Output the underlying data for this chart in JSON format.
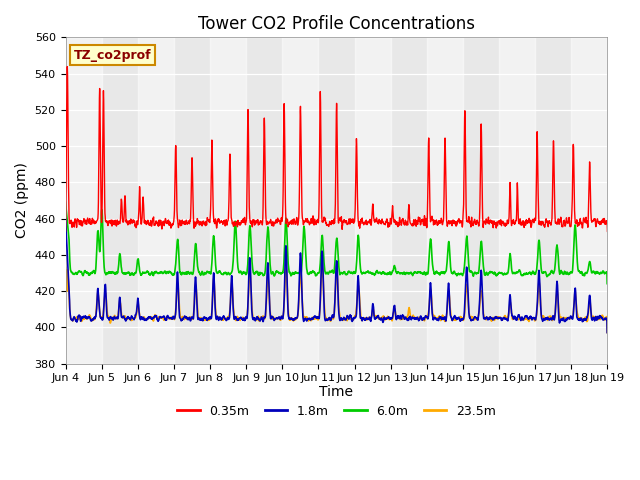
{
  "title": "Tower CO2 Profile Concentrations",
  "xlabel": "Time",
  "ylabel": "CO2 (ppm)",
  "ylim": [
    380,
    560
  ],
  "yticks": [
    380,
    400,
    420,
    440,
    460,
    480,
    500,
    520,
    540,
    560
  ],
  "legend_label": "TZ_co2prof",
  "series_labels": [
    "0.35m",
    "1.8m",
    "6.0m",
    "23.5m"
  ],
  "series_colors": [
    "#ff0000",
    "#0000bb",
    "#00cc00",
    "#ffaa00"
  ],
  "x_tick_labels": [
    "Jun 4",
    "Jun 5",
    "Jun 6",
    "Jun 7",
    "Jun 8",
    "Jun 9",
    "Jun 10",
    "Jun 11",
    "Jun 12",
    "Jun 13",
    "Jun 14",
    "Jun 15",
    "Jun 16",
    "Jun 17",
    "Jun 18",
    "Jun 19"
  ],
  "plot_bg_color": "#e8e8e8",
  "stripe_color": "#d0d0d0",
  "title_fontsize": 12,
  "label_fontsize": 10,
  "tick_fontsize": 8
}
